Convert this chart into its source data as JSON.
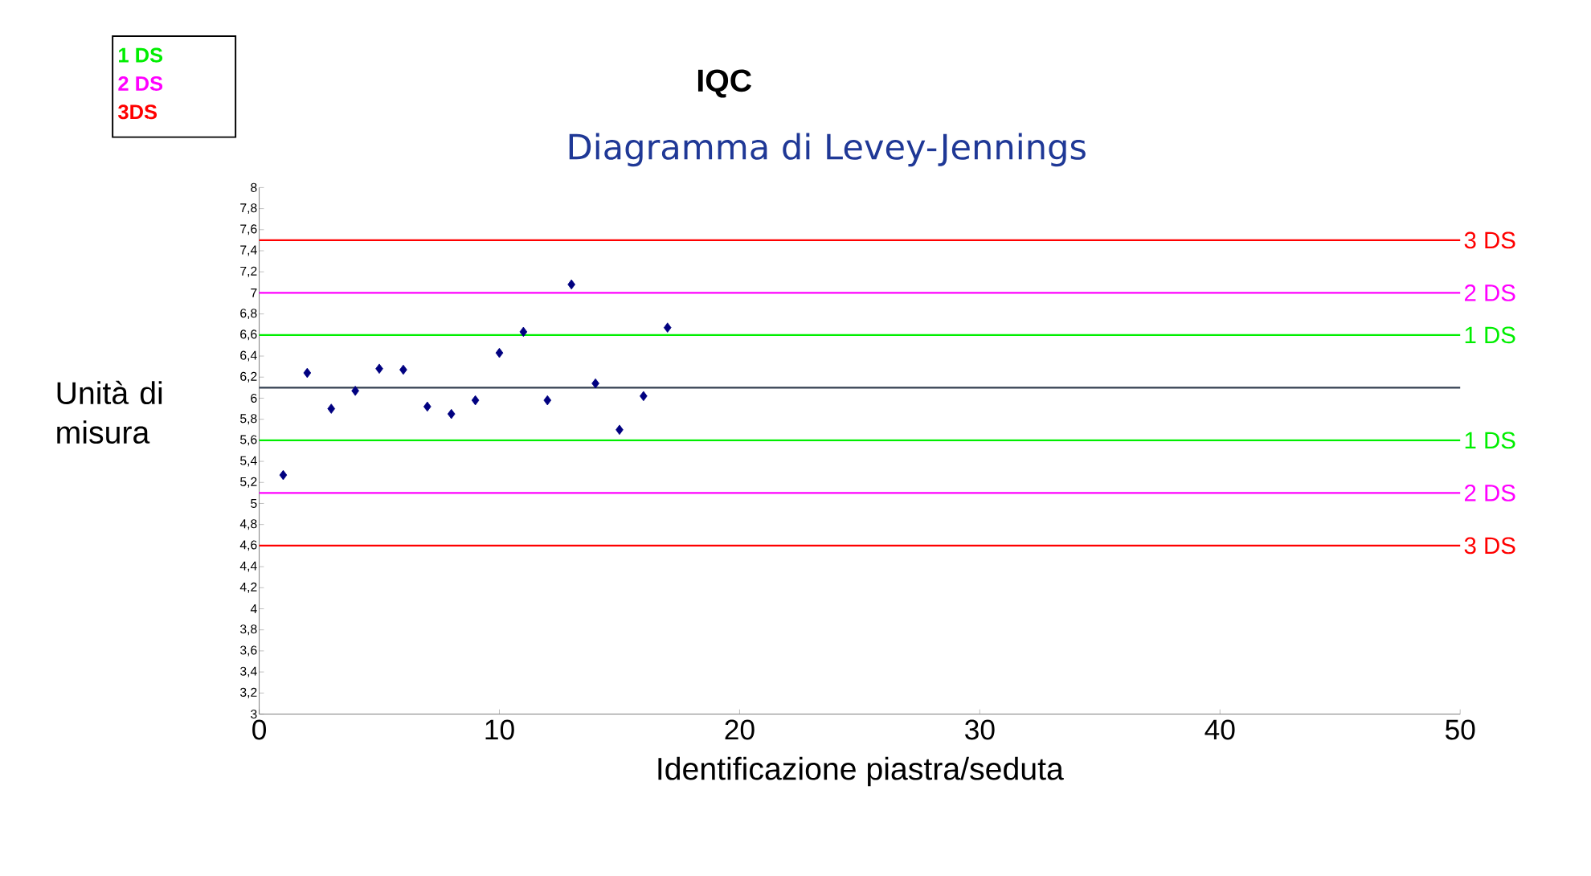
{
  "chart_data": {
    "type": "scatter",
    "title": "IQC",
    "subtitle": "Diagramma di Levey-Jennings",
    "xlabel": "Identificazione piastra/seduta",
    "ylabel": "Unità di misura",
    "annotations": [
      "1 DS",
      "2 DS",
      "3DS"
    ],
    "x": [
      1,
      2,
      3,
      4,
      5,
      6,
      7,
      8,
      9,
      10,
      11,
      12,
      13,
      14,
      15,
      16,
      17
    ],
    "series": [
      {
        "color": "#000080",
        "values": [
          5.27,
          6.24,
          5.9,
          6.07,
          6.28,
          6.27,
          5.92,
          5.85,
          5.98,
          6.43,
          6.63,
          5.98,
          7.08,
          6.14,
          5.7,
          6.02,
          6.67
        ]
      }
    ],
    "marker": "diamond",
    "grid": false,
    "xlim": [
      0,
      50
    ],
    "xticks": [
      0,
      10,
      20,
      30,
      40,
      50
    ],
    "ylim": [
      3,
      8
    ],
    "yticks": [
      3,
      {
        "value": 3.2,
        "label": "3,2"
      },
      {
        "value": 3.4,
        "label": "3,4"
      },
      {
        "value": 3.6,
        "label": "3,6"
      },
      {
        "value": 3.8,
        "label": "3,8"
      },
      4,
      {
        "value": 4.2,
        "label": "4,2"
      },
      {
        "value": 4.4,
        "label": "4,4"
      },
      {
        "value": 4.6,
        "label": "4,6"
      },
      {
        "value": 4.8,
        "label": "4,8"
      },
      5,
      {
        "value": 5.2,
        "label": "5,2"
      },
      {
        "value": 5.4,
        "label": "5,4"
      },
      {
        "value": 5.6,
        "label": "5,6"
      },
      {
        "value": 5.8,
        "label": "5,8"
      },
      6,
      {
        "value": 6.2,
        "label": "6,2"
      },
      {
        "value": 6.4,
        "label": "6,4"
      },
      {
        "value": 6.6,
        "label": "6,6"
      },
      {
        "value": 6.8,
        "label": "6,8"
      },
      7,
      {
        "value": 7.2,
        "label": "7,2"
      },
      {
        "value": 7.4,
        "label": "7,4"
      },
      {
        "value": 7.6,
        "label": "7,6"
      },
      {
        "value": 7.8,
        "label": "7,8"
      },
      8
    ],
    "ref_lines": [
      {
        "axis": "y",
        "value": 6.6,
        "label": "1 DS",
        "color": "#00ee00"
      },
      {
        "axis": "y",
        "value": 7.0,
        "label": "2 DS",
        "color": "#ff00ff"
      },
      {
        "axis": "y",
        "value": 7.5,
        "label": "3 DS",
        "color": "#ff0000"
      },
      {
        "axis": "y",
        "value": 6.1,
        "color": "#333f50"
      },
      {
        "axis": "y",
        "value": 5.6,
        "label": "1 DS",
        "color": "#00ee00"
      },
      {
        "axis": "y",
        "value": 5.1,
        "label": "2 DS",
        "color": "#ff00ff"
      },
      {
        "axis": "y",
        "value": 4.6,
        "label": "3 DS",
        "color": "#ff0000"
      }
    ]
  }
}
